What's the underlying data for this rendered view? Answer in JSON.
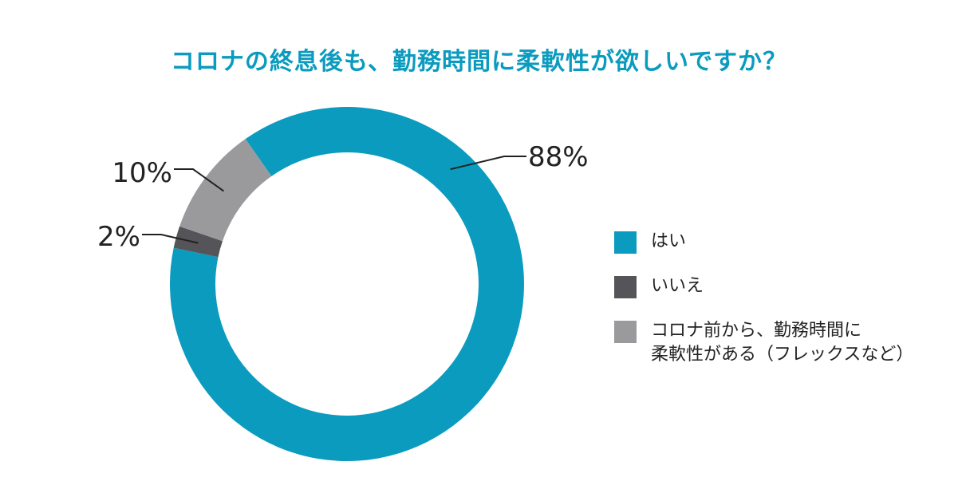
{
  "chart_data": {
    "type": "pie",
    "style": "donut",
    "title": "コロナの終息後も、勤務時間に柔軟性が欲しいですか？",
    "slices": [
      {
        "label": "はい",
        "value": 88,
        "display": "88%",
        "color": "#0a9bbf"
      },
      {
        "label": "いいえ",
        "value": 2,
        "display": "2%",
        "color": "#555459"
      },
      {
        "label": "コロナ前から、勤務時間に\n柔軟性がある（フレックスなど）",
        "value": 10,
        "display": "10%",
        "color": "#9a9a9c"
      }
    ],
    "legend_position": "right"
  }
}
